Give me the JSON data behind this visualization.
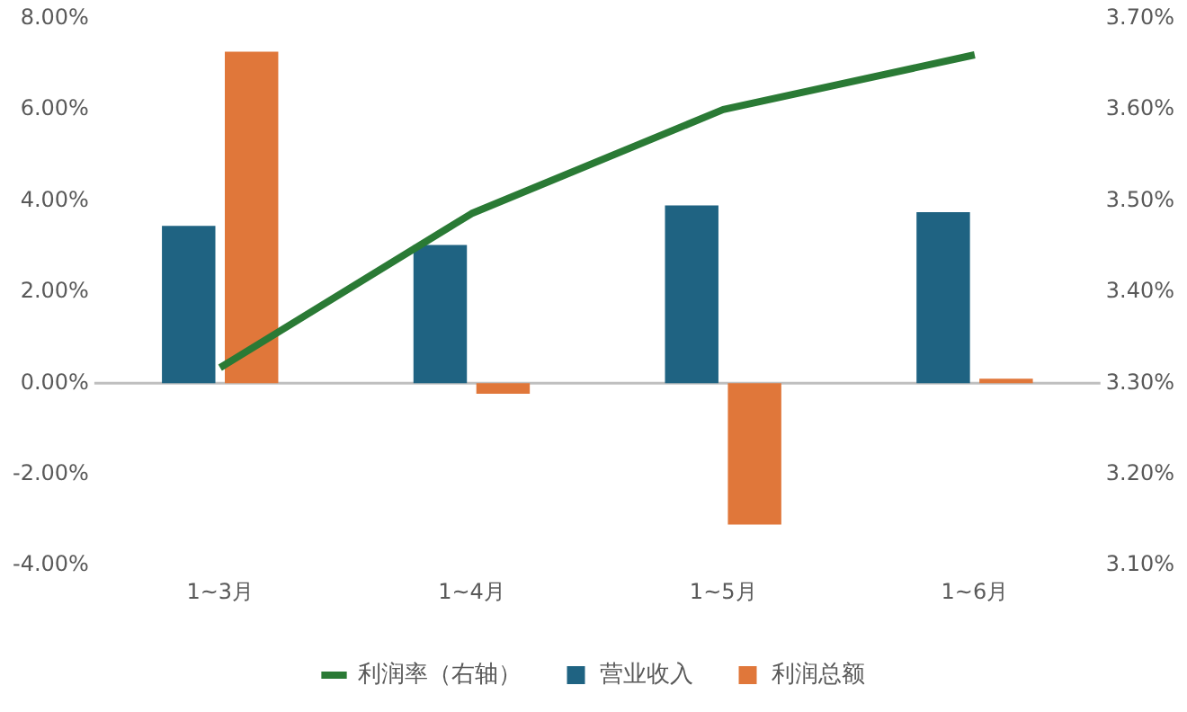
{
  "chart_data": {
    "type": "bar",
    "categories": [
      "1~3月",
      "1~4月",
      "1~5月",
      "1~6月"
    ],
    "series": [
      {
        "name": "营业收入",
        "color": "#1f6382",
        "values": [
          3.45,
          3.03,
          3.9,
          3.75
        ]
      },
      {
        "name": "利润总额",
        "color": "#e0773a",
        "values": [
          7.27,
          -0.23,
          -3.1,
          0.1
        ]
      },
      {
        "name": "利润率（右轴）",
        "type": "line",
        "axis": "y2",
        "color": "#2a7a35",
        "values": [
          3.317,
          3.486,
          3.6,
          3.66
        ]
      }
    ],
    "ylim": [
      -4,
      8
    ],
    "yticks": [
      {
        "value": -4,
        "label": "-4.00%"
      },
      {
        "value": -2,
        "label": "-2.00%"
      },
      {
        "value": 0,
        "label": "0.00%"
      },
      {
        "value": 2,
        "label": "2.00%"
      },
      {
        "value": 4,
        "label": "4.00%"
      },
      {
        "value": 6,
        "label": "6.00%"
      },
      {
        "value": 8,
        "label": "8.00%"
      }
    ],
    "y2lim": [
      3.1,
      3.7
    ],
    "y2ticks": [
      {
        "value": 3.1,
        "label": "3.10%"
      },
      {
        "value": 3.2,
        "label": "3.20%"
      },
      {
        "value": 3.3,
        "label": "3.30%"
      },
      {
        "value": 3.4,
        "label": "3.40%"
      },
      {
        "value": 3.5,
        "label": "3.50%"
      },
      {
        "value": 3.6,
        "label": "3.60%"
      },
      {
        "value": 3.7,
        "label": "3.70%"
      }
    ],
    "ref_lines": [
      {
        "axis": "y",
        "value": 0,
        "color": "#bfbfbf"
      }
    ],
    "grid": false,
    "legend": "bottom",
    "marker": "none"
  }
}
